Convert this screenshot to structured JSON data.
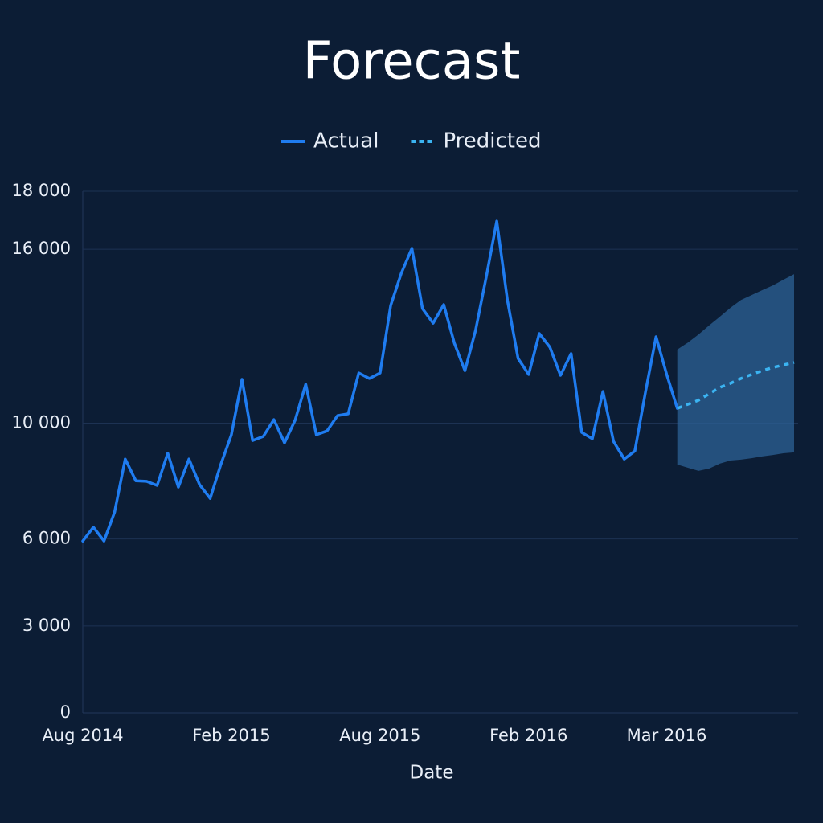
{
  "chart_data": {
    "type": "line",
    "title": "Forecast",
    "x_label": "Date",
    "categories": [
      "Aug 2014",
      null,
      null,
      null,
      null,
      null,
      null,
      null,
      null,
      null,
      null,
      null,
      null,
      null,
      "Feb 2015",
      null,
      null,
      null,
      null,
      null,
      null,
      null,
      null,
      null,
      null,
      null,
      null,
      null,
      "Aug 2015",
      null,
      null,
      null,
      null,
      null,
      null,
      null,
      null,
      null,
      null,
      null,
      null,
      null,
      "Feb 2016",
      null,
      null,
      null,
      null,
      null,
      null,
      null,
      null,
      null,
      null,
      null,
      null,
      "Mar 2016",
      null,
      null,
      null,
      null,
      null,
      null,
      null,
      null,
      null,
      null,
      null,
      null
    ],
    "series": [
      {
        "name": "Actual",
        "color": "#1f7cf0",
        "dashed": false,
        "values": [
          5930,
          6410,
          5930,
          6930,
          8760,
          8010,
          7990,
          7850,
          8960,
          7790,
          8760,
          7880,
          7400,
          8570,
          9600,
          11510,
          9400,
          9540,
          10120,
          9320,
          10100,
          11340,
          9600,
          9730,
          10260,
          10320,
          11730,
          11540,
          11730,
          14060,
          15170,
          16030,
          13950,
          13450,
          14090,
          12760,
          11810,
          13200,
          15030,
          16970,
          14230,
          12230,
          11680,
          13090,
          12620,
          11650,
          12400,
          9680,
          9460,
          11090,
          9370,
          8760,
          9040,
          11070,
          12980,
          11680,
          10510,
          null,
          null,
          null,
          null,
          null,
          null,
          null,
          null,
          null,
          null,
          null
        ]
      },
      {
        "name": "Predicted",
        "color": "#3bb4f2",
        "dashed": true,
        "values": [
          null,
          null,
          null,
          null,
          null,
          null,
          null,
          null,
          null,
          null,
          null,
          null,
          null,
          null,
          null,
          null,
          null,
          null,
          null,
          null,
          null,
          null,
          null,
          null,
          null,
          null,
          null,
          null,
          null,
          null,
          null,
          null,
          null,
          null,
          null,
          null,
          null,
          null,
          null,
          null,
          null,
          null,
          null,
          null,
          null,
          null,
          null,
          null,
          null,
          null,
          null,
          null,
          null,
          null,
          null,
          null,
          10510,
          10650,
          10790,
          11010,
          11230,
          11370,
          11540,
          11680,
          11810,
          11920,
          12010,
          12090
        ]
      }
    ],
    "band": {
      "color": "#2c6296",
      "upper": [
        null,
        null,
        null,
        null,
        null,
        null,
        null,
        null,
        null,
        null,
        null,
        null,
        null,
        null,
        null,
        null,
        null,
        null,
        null,
        null,
        null,
        null,
        null,
        null,
        null,
        null,
        null,
        null,
        null,
        null,
        null,
        null,
        null,
        null,
        null,
        null,
        null,
        null,
        null,
        null,
        null,
        null,
        null,
        null,
        null,
        null,
        null,
        null,
        null,
        null,
        null,
        null,
        null,
        null,
        null,
        null,
        12540,
        12780,
        13060,
        13370,
        13670,
        13980,
        14250,
        14420,
        14590,
        14750,
        14950,
        15140
      ],
      "lower": [
        null,
        null,
        null,
        null,
        null,
        null,
        null,
        null,
        null,
        null,
        null,
        null,
        null,
        null,
        null,
        null,
        null,
        null,
        null,
        null,
        null,
        null,
        null,
        null,
        null,
        null,
        null,
        null,
        null,
        null,
        null,
        null,
        null,
        null,
        null,
        null,
        null,
        null,
        null,
        null,
        null,
        null,
        null,
        null,
        null,
        null,
        null,
        null,
        null,
        null,
        null,
        null,
        null,
        null,
        null,
        null,
        8570,
        8460,
        8350,
        8430,
        8600,
        8710,
        8740,
        8790,
        8850,
        8900,
        8960,
        8990
      ]
    },
    "ylim": [
      0,
      18000
    ],
    "yticks": [
      {
        "value": 18000,
        "label": "18 000"
      },
      {
        "value": 16000,
        "label": "16 000"
      },
      {
        "value": 10000,
        "label": "10 000"
      },
      {
        "value": 3000,
        "label": "3 000"
      },
      {
        "value": 6000,
        "label": "6 000"
      },
      0
    ],
    "grid": true,
    "legend": "top"
  }
}
